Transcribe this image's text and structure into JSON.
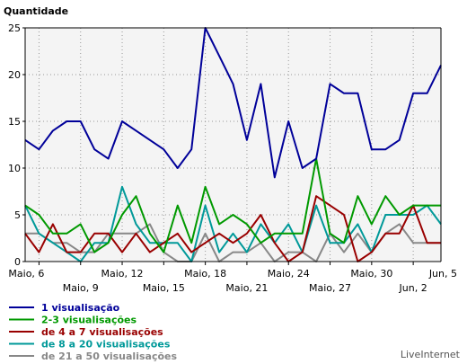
{
  "chart_data": {
    "type": "line",
    "ylabel": "Quantidade",
    "ylim": [
      0,
      25
    ],
    "yticks": [
      0,
      5,
      10,
      15,
      20,
      25
    ],
    "x_start": "Maio, 5",
    "x_end": "Jun, 5",
    "x_ticks_major": [
      "Maio, 6",
      "Maio, 12",
      "Maio, 18",
      "Maio, 24",
      "Maio, 30",
      "Jun, 5"
    ],
    "x_ticks_minor": [
      "Maio, 9",
      "Maio, 15",
      "Maio, 21",
      "Maio, 27",
      "Jun, 2"
    ],
    "grid": true,
    "legend_position": "bottom-left",
    "series": [
      {
        "name": "1 visualisação",
        "color": "#000099",
        "values": [
          13,
          12,
          14,
          15,
          15,
          12,
          11,
          15,
          14,
          13,
          12,
          10,
          12,
          25,
          22,
          19,
          13,
          19,
          9,
          15,
          10,
          11,
          19,
          18,
          18,
          12,
          12,
          13,
          18,
          18,
          21
        ]
      },
      {
        "name": "2-3 visualisações",
        "color": "#009900",
        "values": [
          6,
          5,
          3,
          3,
          4,
          1,
          2,
          5,
          7,
          3,
          1,
          6,
          2,
          8,
          4,
          5,
          4,
          2,
          3,
          3,
          3,
          11,
          3,
          2,
          7,
          4,
          7,
          5,
          6,
          6,
          6
        ]
      },
      {
        "name": "de 4 a 7 visualisações",
        "color": "#990000",
        "values": [
          3,
          1,
          4,
          1,
          1,
          3,
          3,
          1,
          3,
          1,
          2,
          3,
          1,
          2,
          3,
          2,
          3,
          5,
          2,
          0,
          1,
          7,
          6,
          5,
          0,
          1,
          3,
          3,
          6,
          2,
          2
        ]
      },
      {
        "name": "de 8 a 20 visualisações",
        "color": "#009999",
        "values": [
          6,
          3,
          2,
          1,
          0,
          2,
          2,
          8,
          4,
          2,
          2,
          2,
          0,
          6,
          1,
          3,
          1,
          4,
          2,
          4,
          1,
          6,
          2,
          2,
          4,
          1,
          5,
          5,
          5,
          6,
          4
        ]
      },
      {
        "name": "de 21 a 50 visualisações",
        "color": "#888888",
        "values": [
          3,
          3,
          2,
          2,
          1,
          1,
          3,
          3,
          3,
          4,
          1,
          0,
          0,
          3,
          0,
          1,
          1,
          2,
          0,
          1,
          1,
          0,
          3,
          1,
          3,
          1,
          3,
          4,
          2,
          2,
          2
        ]
      }
    ]
  },
  "credit": "LiveInternet"
}
